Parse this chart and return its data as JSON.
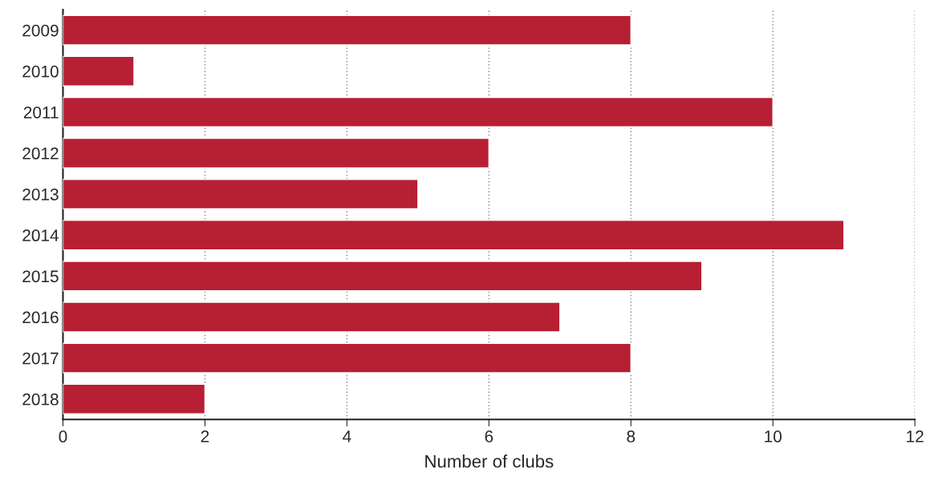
{
  "chart_data": {
    "type": "bar",
    "orientation": "horizontal",
    "xlabel": "Number of clubs",
    "categories": [
      "2009",
      "2010",
      "2011",
      "2012",
      "2013",
      "2014",
      "2015",
      "2016",
      "2017",
      "2018"
    ],
    "values": [
      8,
      1,
      10,
      6,
      5,
      11,
      9,
      7,
      8,
      2
    ],
    "color": "#b71f34",
    "xlim": [
      0,
      12
    ],
    "xticks": [
      0,
      2,
      4,
      6,
      8,
      10,
      12
    ],
    "grid": "x"
  }
}
